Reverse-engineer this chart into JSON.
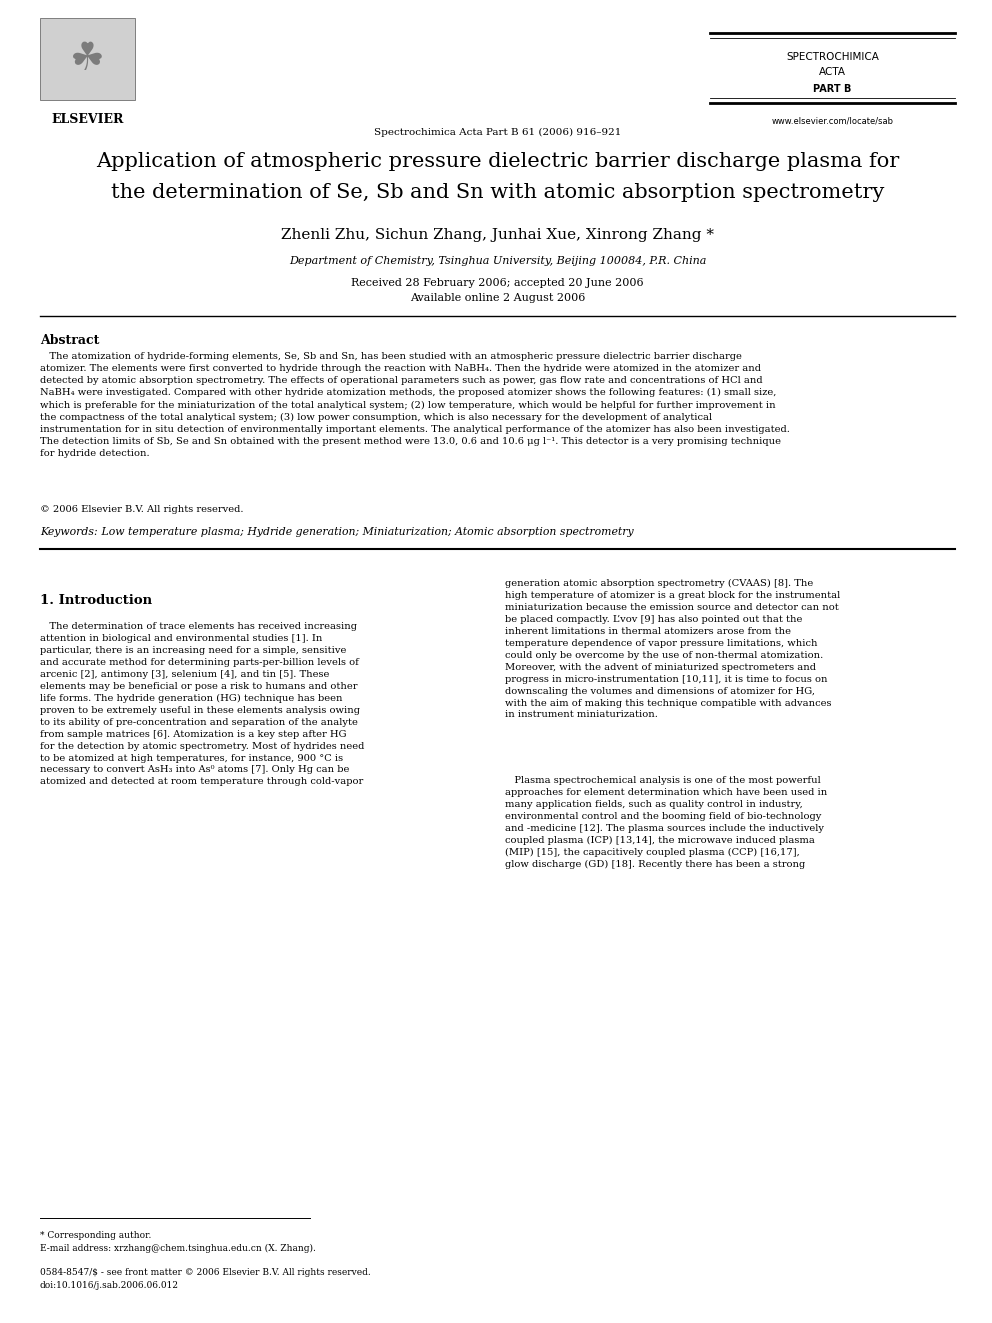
{
  "bg_color": "#ffffff",
  "journal_name_line1": "SPECTROCHIMICA",
  "journal_name_line2": "ACTA",
  "journal_part": "PART B",
  "journal_url": "www.elsevier.com/locate/sab",
  "journal_ref": "Spectrochimica Acta Part B 61 (2006) 916–921",
  "title_line1": "Application of atmospheric pressure dielectric barrier discharge plasma for",
  "title_line2": "the determination of Se, Sb and Sn with atomic absorption spectrometry",
  "authors": "Zhenli Zhu, Sichun Zhang, Junhai Xue, Xinrong Zhang *",
  "affiliation": "Department of Chemistry, Tsinghua University, Beijing 100084, P.R. China",
  "received": "Received 28 February 2006; accepted 20 June 2006",
  "available": "Available online 2 August 2006",
  "abstract_title": "Abstract",
  "abstract_text": "   The atomization of hydride-forming elements, Se, Sb and Sn, has been studied with an atmospheric pressure dielectric barrier discharge\natomizer. The elements were first converted to hydride through the reaction with NaBH₄. Then the hydride were atomized in the atomizer and\ndetected by atomic absorption spectrometry. The effects of operational parameters such as power, gas flow rate and concentrations of HCl and\nNaBH₄ were investigated. Compared with other hydride atomization methods, the proposed atomizer shows the following features: (1) small size,\nwhich is preferable for the miniaturization of the total analytical system; (2) low temperature, which would be helpful for further improvement in\nthe compactness of the total analytical system; (3) low power consumption, which is also necessary for the development of analytical\ninstrumentation for in situ detection of environmentally important elements. The analytical performance of the atomizer has also been investigated.\nThe detection limits of Sb, Se and Sn obtained with the present method were 13.0, 0.6 and 10.6 μg l⁻¹. This detector is a very promising technique\nfor hydride detection.",
  "copyright": "© 2006 Elsevier B.V. All rights reserved.",
  "keywords_label": "Keywords:",
  "keywords": " Low temperature plasma; Hydride generation; Miniaturization; Atomic absorption spectrometry",
  "section1_title": "1. Introduction",
  "intro_col1": "   The determination of trace elements has received increasing\nattention in biological and environmental studies [1]. In\nparticular, there is an increasing need for a simple, sensitive\nand accurate method for determining parts-per-billion levels of\narcenic [2], antimony [3], selenium [4], and tin [5]. These\nelements may be beneficial or pose a risk to humans and other\nlife forms. The hydride generation (HG) technique has been\nproven to be extremely useful in these elements analysis owing\nto its ability of pre-concentration and separation of the analyte\nfrom sample matrices [6]. Atomization is a key step after HG\nfor the detection by atomic spectrometry. Most of hydrides need\nto be atomized at high temperatures, for instance, 900 °C is\nnecessary to convert AsH₃ into As⁰ atoms [7]. Only Hg can be\natomized and detected at room temperature through cold-vapor",
  "intro_col2_p1": "generation atomic absorption spectrometry (CVAAS) [8]. The\nhigh temperature of atomizer is a great block for the instrumental\nminiaturization because the emission source and detector can not\nbe placed compactly. L’vov [9] has also pointed out that the\ninherent limitations in thermal atomizers arose from the\ntemperature dependence of vapor pressure limitations, which\ncould only be overcome by the use of non-thermal atomization.\nMoreover, with the advent of miniaturized spectrometers and\nprogress in micro-instrumentation [10,11], it is time to focus on\ndownscaling the volumes and dimensions of atomizer for HG,\nwith the aim of making this technique compatible with advances\nin instrument miniaturization.",
  "intro_col2_p2": "   Plasma spectrochemical analysis is one of the most powerful\napproaches for element determination which have been used in\nmany application fields, such as quality control in industry,\nenvironmental control and the booming field of bio-technology\nand -medicine [12]. The plasma sources include the inductively\ncoupled plasma (ICP) [13,14], the microwave induced plasma\n(MIP) [15], the capacitively coupled plasma (CCP) [16,17],\nglow discharge (GD) [18]. Recently there has been a strong",
  "footer_star": "* Corresponding author.",
  "footer_email": "E-mail address: xrzhang@chem.tsinghua.edu.cn (X. Zhang).",
  "footer_issn": "0584-8547/$ - see front matter © 2006 Elsevier B.V. All rights reserved.",
  "footer_doi": "doi:10.1016/j.sab.2006.06.012"
}
